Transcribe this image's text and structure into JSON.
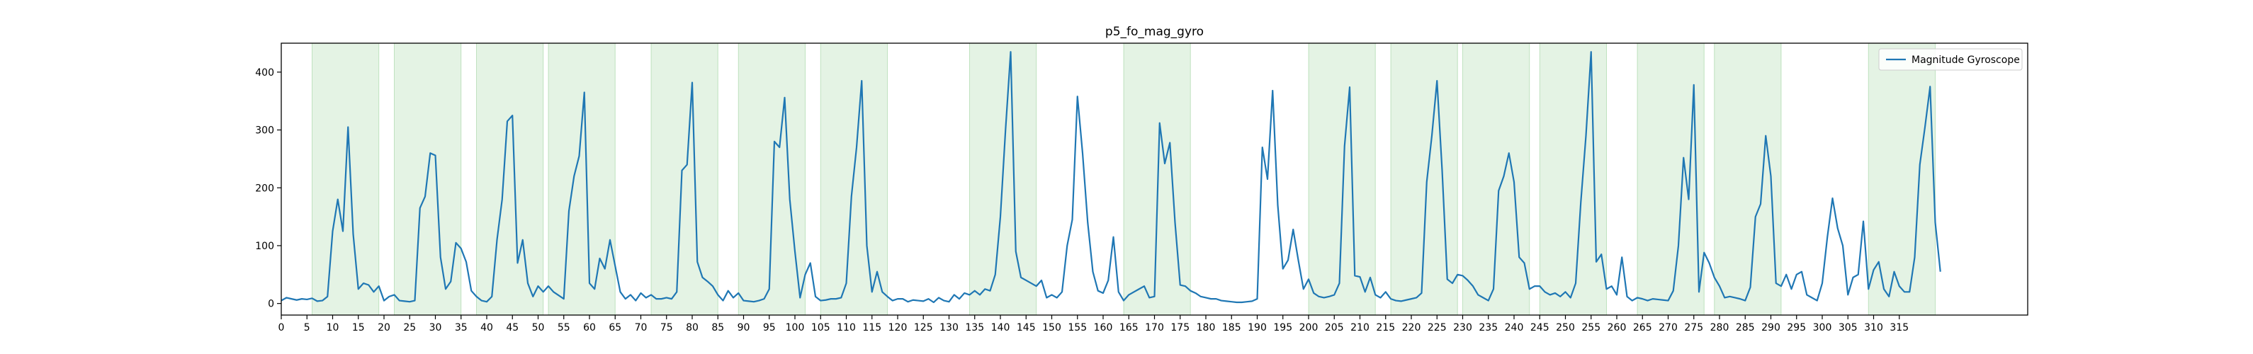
{
  "chart_data": {
    "type": "line",
    "title": "p5_fo_mag_gyro",
    "xlabel": "",
    "ylabel": "",
    "xlim": [
      0,
      340
    ],
    "ylim": [
      -20,
      450
    ],
    "x_ticks": [
      0,
      5,
      10,
      15,
      20,
      25,
      30,
      35,
      40,
      45,
      50,
      55,
      60,
      65,
      70,
      75,
      80,
      85,
      90,
      95,
      100,
      105,
      110,
      115,
      120,
      125,
      130,
      135,
      140,
      145,
      150,
      155,
      160,
      165,
      170,
      175,
      180,
      185,
      190,
      195,
      200,
      205,
      210,
      215,
      220,
      225,
      230,
      235,
      240,
      245,
      250,
      255,
      260,
      265,
      270,
      275,
      280,
      285,
      290,
      295,
      300,
      305,
      310,
      315
    ],
    "y_ticks": [
      0,
      100,
      200,
      300,
      400
    ],
    "grid": false,
    "legend_position": "top-right",
    "line_color": "#1f77b4",
    "span_color": "#2ca02c",
    "shaded_regions": [
      [
        6,
        19
      ],
      [
        22,
        35
      ],
      [
        38,
        51
      ],
      [
        52,
        65
      ],
      [
        72,
        85
      ],
      [
        89,
        102
      ],
      [
        105,
        118
      ],
      [
        134,
        147
      ],
      [
        164,
        177
      ],
      [
        200,
        213
      ],
      [
        216,
        229
      ],
      [
        230,
        243
      ],
      [
        245,
        258
      ],
      [
        264,
        277
      ],
      [
        279,
        292
      ],
      [
        309,
        322
      ]
    ],
    "series": [
      {
        "name": "Magnitude Gyroscope",
        "values": [
          5,
          10,
          8,
          6,
          8,
          7,
          9,
          4,
          5,
          12,
          125,
          180,
          125,
          305,
          120,
          25,
          35,
          32,
          20,
          30,
          5,
          12,
          15,
          5,
          4,
          3,
          5,
          165,
          185,
          260,
          256,
          80,
          25,
          38,
          105,
          95,
          72,
          22,
          12,
          5,
          3,
          12,
          110,
          180,
          315,
          325,
          70,
          110,
          35,
          12,
          30,
          20,
          30,
          20,
          14,
          8,
          160,
          220,
          255,
          365,
          35,
          25,
          78,
          60,
          110,
          65,
          20,
          8,
          15,
          5,
          18,
          10,
          15,
          8,
          8,
          10,
          8,
          20,
          230,
          240,
          382,
          72,
          45,
          38,
          30,
          15,
          5,
          22,
          10,
          18,
          5,
          4,
          3,
          5,
          8,
          25,
          280,
          270,
          356,
          180,
          90,
          10,
          50,
          70,
          12,
          5,
          6,
          8,
          8,
          10,
          35,
          185,
          270,
          385,
          100,
          20,
          55,
          20,
          12,
          5,
          8,
          8,
          3,
          6,
          5,
          4,
          8,
          2,
          10,
          5,
          3,
          15,
          8,
          18,
          15,
          22,
          15,
          25,
          22,
          50,
          150,
          300,
          435,
          90,
          45,
          40,
          35,
          30,
          40,
          10,
          15,
          10,
          20,
          100,
          145,
          358,
          260,
          140,
          55,
          22,
          18,
          40,
          115,
          20,
          5,
          15,
          20,
          25,
          30,
          10,
          12,
          312,
          242,
          278,
          140,
          32,
          30,
          22,
          18,
          12,
          10,
          8,
          8,
          5,
          4,
          3,
          2,
          2,
          3,
          4,
          8,
          270,
          215,
          368,
          170,
          60,
          75,
          128,
          75,
          25,
          42,
          18,
          12,
          10,
          12,
          15,
          35,
          272,
          374,
          48,
          46,
          20,
          45,
          15,
          10,
          20,
          8,
          5,
          4,
          6,
          8,
          10,
          18,
          210,
          290,
          385,
          230,
          42,
          35,
          50,
          48,
          40,
          30,
          15,
          10,
          5,
          25,
          195,
          220,
          260,
          210,
          80,
          70,
          25,
          30,
          30,
          20,
          15,
          18,
          12,
          20,
          10,
          35,
          175,
          290,
          435,
          72,
          85,
          25,
          30,
          15,
          80,
          12,
          5,
          10,
          8,
          5,
          8,
          7,
          6,
          5,
          22,
          100,
          252,
          180,
          378,
          20,
          88,
          70,
          45,
          30,
          10,
          12,
          10,
          8,
          5,
          28,
          150,
          172,
          290,
          220,
          35,
          30,
          50,
          25,
          50,
          55,
          15,
          10,
          5,
          35,
          115,
          182,
          130,
          100,
          15,
          45,
          50,
          142,
          25,
          58,
          72,
          25,
          12,
          55,
          30,
          20,
          20,
          80,
          240,
          305,
          375,
          140,
          55
        ]
      }
    ]
  }
}
